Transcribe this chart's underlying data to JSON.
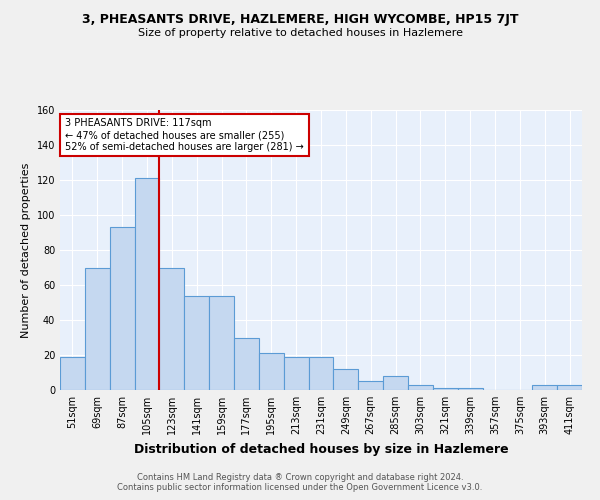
{
  "title": "3, PHEASANTS DRIVE, HAZLEMERE, HIGH WYCOMBE, HP15 7JT",
  "subtitle": "Size of property relative to detached houses in Hazlemere",
  "xlabel": "Distribution of detached houses by size in Hazlemere",
  "ylabel": "Number of detached properties",
  "footnote1": "Contains HM Land Registry data ® Crown copyright and database right 2024.",
  "footnote2": "Contains public sector information licensed under the Open Government Licence v3.0.",
  "categories": [
    "51sqm",
    "69sqm",
    "87sqm",
    "105sqm",
    "123sqm",
    "141sqm",
    "159sqm",
    "177sqm",
    "195sqm",
    "213sqm",
    "231sqm",
    "249sqm",
    "267sqm",
    "285sqm",
    "303sqm",
    "321sqm",
    "339sqm",
    "357sqm",
    "375sqm",
    "393sqm",
    "411sqm"
  ],
  "values": [
    19,
    70,
    93,
    121,
    70,
    54,
    54,
    30,
    21,
    19,
    19,
    12,
    5,
    8,
    3,
    1,
    1,
    0,
    0,
    3,
    3
  ],
  "bar_color": "#c5d8f0",
  "bar_edge_color": "#5b9bd5",
  "figure_bg": "#f0f0f0",
  "axes_bg": "#e8f0fb",
  "grid_color": "#ffffff",
  "vline_color": "#cc0000",
  "vline_x": 3.5,
  "annotation_text": "3 PHEASANTS DRIVE: 117sqm\n← 47% of detached houses are smaller (255)\n52% of semi-detached houses are larger (281) →",
  "annotation_box_color": "#ffffff",
  "annotation_box_edge": "#cc0000",
  "ylim": [
    0,
    160
  ],
  "yticks": [
    0,
    20,
    40,
    60,
    80,
    100,
    120,
    140,
    160
  ],
  "title_fontsize": 9,
  "subtitle_fontsize": 8,
  "ylabel_fontsize": 8,
  "xlabel_fontsize": 9,
  "tick_fontsize": 7,
  "annot_fontsize": 7,
  "footnote_fontsize": 6
}
